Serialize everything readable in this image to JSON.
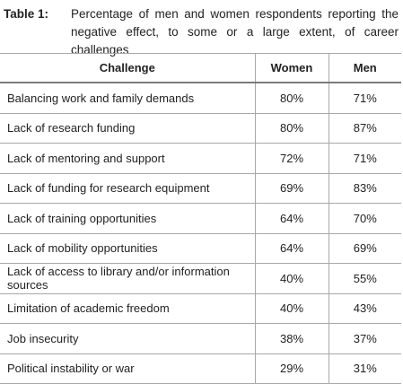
{
  "table_caption": {
    "label": "Table 1:",
    "text": "Percentage of men and women respondents reporting the negative effect, to some or a large extent, of career challenges"
  },
  "table": {
    "headers": [
      "Challenge",
      "Women",
      "Men"
    ],
    "rows": [
      [
        "Balancing work and family demands",
        "80%",
        "71%"
      ],
      [
        "Lack of research funding",
        "80%",
        "87%"
      ],
      [
        "Lack of mentoring and support",
        "72%",
        "71%"
      ],
      [
        "Lack of funding for research equipment",
        "69%",
        "83%"
      ],
      [
        "Lack of training opportunities",
        "64%",
        "70%"
      ],
      [
        "Lack of mobility opportunities",
        "64%",
        "69%"
      ],
      [
        "Lack of access to library and/or information sources",
        "40%",
        "55%"
      ],
      [
        "Limitation of academic freedom",
        "40%",
        "43%"
      ],
      [
        "Job insecurity",
        "38%",
        "37%"
      ],
      [
        "Political instability or war",
        "29%",
        "31%"
      ]
    ]
  }
}
